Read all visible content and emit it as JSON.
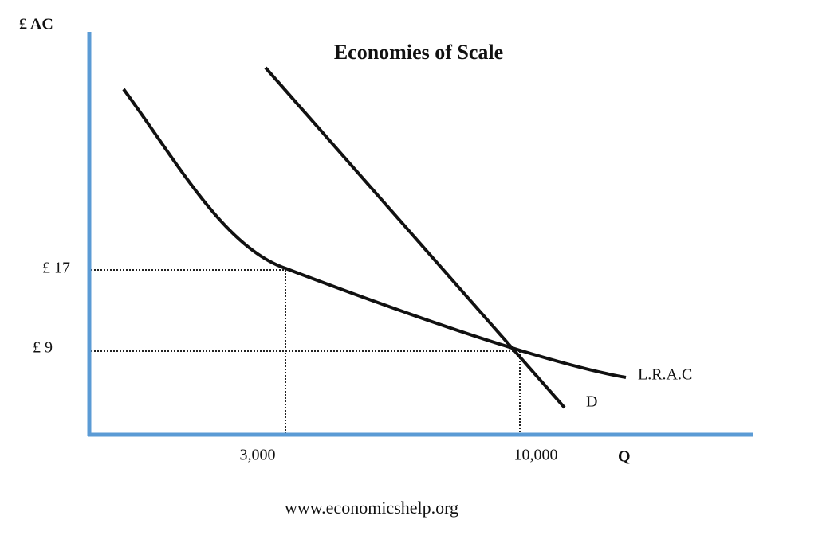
{
  "title": "Economies of Scale",
  "axes": {
    "y_label": "£ AC",
    "x_label": "Q"
  },
  "y_markers": [
    "£ 17",
    "£ 9"
  ],
  "x_markers": [
    "3,000",
    "10,000"
  ],
  "curves": {
    "lrac": "L.R.A.C",
    "demand": "D"
  },
  "footer": "www.economicshelp.org"
}
